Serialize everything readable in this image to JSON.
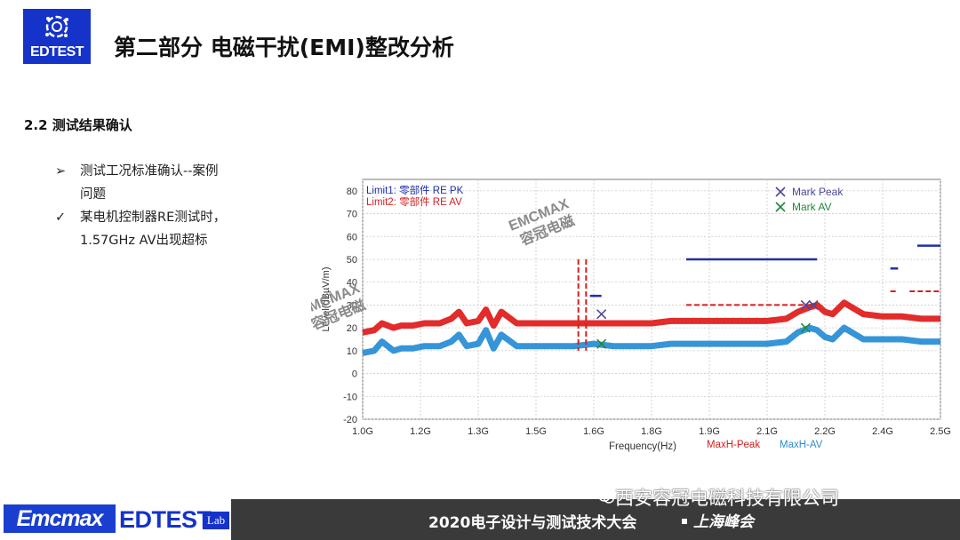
{
  "brand": {
    "logo_text": "EDTEST"
  },
  "header": {
    "title": "第二部分  电磁干扰(EMI)整改分析"
  },
  "section": {
    "heading": "2.2 测试结果确认"
  },
  "bullets": [
    {
      "marker": "➢",
      "line1": "测试工况标准确认--案例",
      "line2": "问题"
    },
    {
      "marker": "✓",
      "line1": "某电机控制器RE测试时，",
      "line2": "1.57GHz AV出现超标"
    }
  ],
  "chart_data": {
    "type": "line",
    "xlabel": "Frequency(Hz)",
    "ylabel": "Level(dBµV/m)",
    "xlim": [
      1.0,
      2.5
    ],
    "ylim": [
      -20,
      85
    ],
    "x_ticks": [
      "1.0G",
      "1.2G",
      "1.3G",
      "1.5G",
      "1.6G",
      "1.8G",
      "1.9G",
      "2.1G",
      "2.2G",
      "2.4G",
      "2.5G"
    ],
    "y_ticks": [
      80,
      70,
      60,
      50,
      40,
      30,
      20,
      10,
      0,
      -10,
      -20
    ],
    "grid": true,
    "legend_top": [
      {
        "label": "Limit1:",
        "name": "零部件",
        "code": "RE PK",
        "color": "#1f2fa8"
      },
      {
        "label": "Limit2:",
        "name": "零部件",
        "code": "RE AV",
        "color": "#d61f1f"
      }
    ],
    "legend_markers": [
      {
        "label": "Mark Peak",
        "color": "#4a4a9a"
      },
      {
        "label": "Mark AV",
        "color": "#1f8a3a"
      }
    ],
    "legend_bottom": [
      {
        "label": "MaxH-Peak",
        "color": "#d61f1f"
      },
      {
        "label": "MaxH-AV",
        "color": "#2b8fd6"
      }
    ],
    "limits_pk": [
      {
        "x": [
          1.59,
          1.62
        ],
        "y": 34
      },
      {
        "x": [
          1.84,
          2.18
        ],
        "y": 50
      },
      {
        "x": [
          2.37,
          2.39
        ],
        "y": 46
      },
      {
        "x": [
          2.44,
          2.5
        ],
        "y": 56
      }
    ],
    "limits_av": [
      {
        "x": [
          1.56,
          1.58
        ],
        "y": 50,
        "vertical_to": 10
      },
      {
        "x": [
          1.84,
          2.18
        ],
        "y": 30
      },
      {
        "x": [
          2.37,
          2.39
        ],
        "y": 36
      },
      {
        "x": [
          2.42,
          2.5
        ],
        "y": 36
      }
    ],
    "series": [
      {
        "name": "MaxH-Peak",
        "color": "#e02020",
        "x": [
          1.0,
          1.03,
          1.05,
          1.08,
          1.1,
          1.13,
          1.16,
          1.2,
          1.23,
          1.25,
          1.27,
          1.3,
          1.32,
          1.34,
          1.36,
          1.4,
          1.45,
          1.5,
          1.55,
          1.6,
          1.65,
          1.7,
          1.75,
          1.8,
          1.85,
          1.9,
          1.95,
          2.0,
          2.05,
          2.1,
          2.13,
          2.16,
          2.18,
          2.2,
          2.22,
          2.25,
          2.27,
          2.3,
          2.35,
          2.4,
          2.45,
          2.5
        ],
        "y": [
          18,
          19,
          22,
          20,
          21,
          21,
          22,
          22,
          24,
          27,
          22,
          23,
          28,
          21,
          27,
          22,
          22,
          22,
          22,
          22,
          22,
          22,
          22,
          23,
          23,
          23,
          23,
          23,
          23,
          24,
          27,
          29,
          30,
          27,
          26,
          31,
          29,
          26,
          25,
          25,
          24,
          24
        ]
      },
      {
        "name": "MaxH-AV",
        "color": "#2b8fd6",
        "x": [
          1.0,
          1.03,
          1.05,
          1.08,
          1.1,
          1.13,
          1.16,
          1.2,
          1.23,
          1.25,
          1.27,
          1.3,
          1.32,
          1.34,
          1.36,
          1.4,
          1.45,
          1.5,
          1.55,
          1.6,
          1.65,
          1.7,
          1.75,
          1.8,
          1.85,
          1.9,
          1.95,
          2.0,
          2.05,
          2.1,
          2.13,
          2.16,
          2.18,
          2.2,
          2.22,
          2.25,
          2.27,
          2.3,
          2.35,
          2.4,
          2.45,
          2.5
        ],
        "y": [
          9,
          10,
          14,
          10,
          11,
          11,
          12,
          12,
          14,
          17,
          12,
          13,
          19,
          11,
          17,
          12,
          12,
          12,
          12,
          13,
          12,
          12,
          12,
          13,
          13,
          13,
          13,
          13,
          13,
          14,
          18,
          20,
          19,
          16,
          15,
          20,
          18,
          15,
          15,
          15,
          14,
          14
        ]
      }
    ],
    "marks_peak": [
      {
        "x": 1.62,
        "y": 26
      },
      {
        "x": 2.15,
        "y": 30
      },
      {
        "x": 2.17,
        "y": 30
      }
    ],
    "marks_av": [
      {
        "x": 1.62,
        "y": 13
      },
      {
        "x": 2.15,
        "y": 20
      }
    ]
  },
  "watermarks": [
    {
      "line1": "EMCMAX",
      "line2": "容冠电磁"
    },
    {
      "line1": "EMCMAX",
      "line2": "容冠电磁"
    }
  ],
  "footer": {
    "emcmax_logo": "Emcmax",
    "edtest_logo": "EDTEST",
    "lab_badge": "Lab",
    "conference": "2020电子设计与测试技术大会",
    "city": "上海峰会",
    "company_watermark": "西安容冠电磁科技有限公司"
  }
}
